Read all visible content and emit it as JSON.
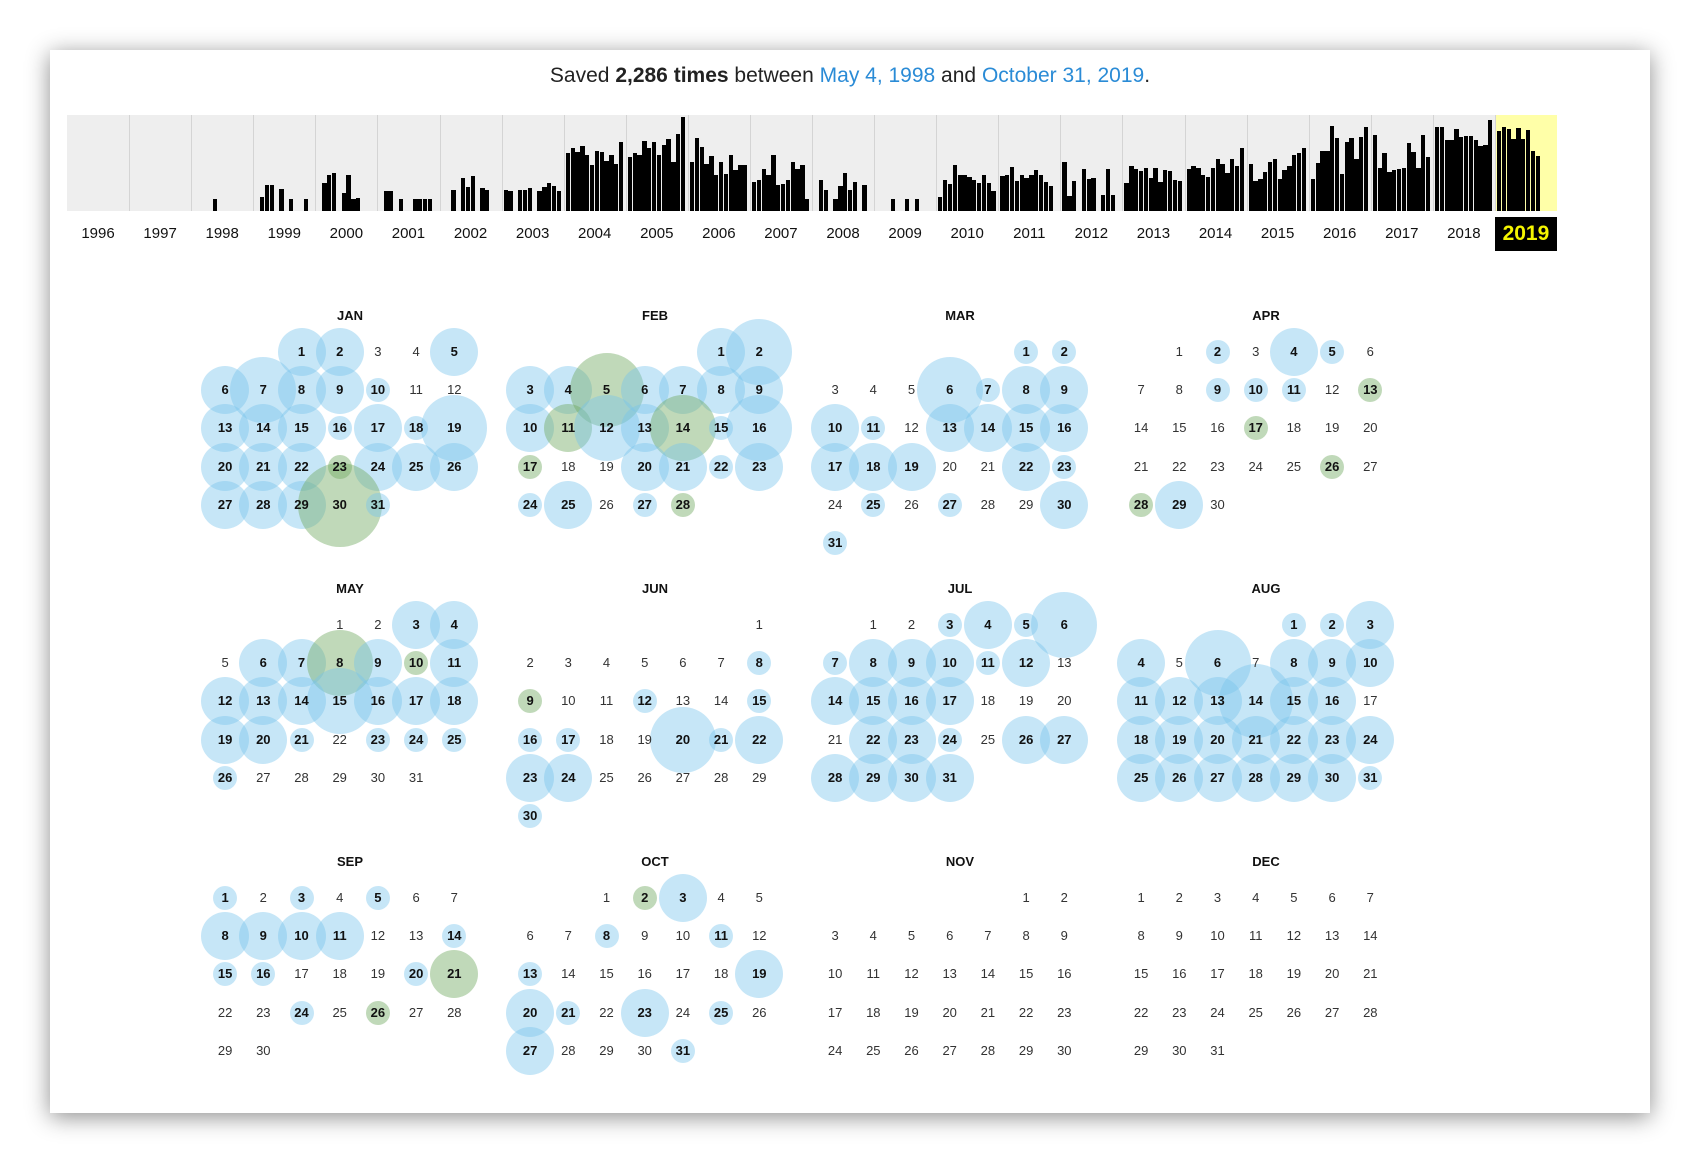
{
  "summary": {
    "prefix": "Saved ",
    "count": "2,286 times",
    "between": " between ",
    "first_date": "May 4, 1998",
    "and": " and ",
    "last_date": "October 31, 2019",
    "suffix": "."
  },
  "years": [
    "1996",
    "1997",
    "1998",
    "1999",
    "2000",
    "2001",
    "2002",
    "2003",
    "2004",
    "2005",
    "2006",
    "2007",
    "2008",
    "2009",
    "2010",
    "2011",
    "2012",
    "2013",
    "2014",
    "2015",
    "2016",
    "2017",
    "2018",
    "2019"
  ],
  "selected_year": "2019",
  "sparkline_levels": [
    [
      0,
      0,
      0,
      0,
      0,
      0,
      0,
      0,
      0,
      0,
      0,
      0
    ],
    [
      0,
      0,
      0,
      0,
      0,
      0,
      0,
      0,
      0,
      0,
      0,
      0
    ],
    [
      0,
      0,
      0,
      0,
      13,
      0,
      0,
      0,
      0,
      0,
      0,
      0
    ],
    [
      0,
      15,
      27,
      27,
      0,
      23,
      0,
      12,
      0,
      0,
      13,
      0
    ],
    [
      0,
      29,
      37,
      40,
      0,
      19,
      37,
      13,
      14,
      0,
      0,
      0
    ],
    [
      0,
      21,
      21,
      0,
      12,
      0,
      0,
      12,
      12,
      13,
      12,
      0
    ],
    [
      0,
      0,
      22,
      0,
      34,
      25,
      36,
      0,
      24,
      22,
      0,
      0
    ],
    [
      22,
      21,
      0,
      22,
      22,
      24,
      0,
      21,
      25,
      29,
      26,
      21
    ],
    [
      60,
      66,
      61,
      68,
      58,
      48,
      62,
      61,
      52,
      58,
      49,
      72
    ],
    [
      56,
      60,
      58,
      73,
      66,
      72,
      58,
      69,
      75,
      51,
      80,
      98
    ],
    [
      51,
      76,
      67,
      49,
      57,
      38,
      51,
      39,
      58,
      43,
      48,
      48
    ],
    [
      30,
      32,
      44,
      37,
      58,
      27,
      28,
      32,
      51,
      44,
      48,
      12
    ],
    [
      0,
      32,
      22,
      0,
      12,
      26,
      40,
      22,
      30,
      0,
      27,
      0
    ],
    [
      0,
      0,
      0,
      12,
      0,
      0,
      12,
      0,
      12,
      0,
      0,
      0
    ],
    [
      15,
      32,
      28,
      48,
      38,
      38,
      35,
      32,
      29,
      38,
      29,
      21
    ],
    [
      36,
      38,
      46,
      31,
      38,
      34,
      37,
      43,
      37,
      30,
      26,
      0
    ],
    [
      51,
      16,
      31,
      0,
      44,
      33,
      34,
      0,
      17,
      44,
      17,
      0
    ],
    [
      29,
      47,
      44,
      42,
      45,
      34,
      45,
      30,
      43,
      42,
      32,
      31
    ],
    [
      44,
      47,
      45,
      37,
      35,
      45,
      54,
      49,
      40,
      54,
      47,
      66
    ],
    [
      49,
      31,
      33,
      41,
      51,
      54,
      33,
      43,
      47,
      58,
      60,
      66
    ],
    [
      33,
      50,
      63,
      62,
      89,
      76,
      39,
      72,
      76,
      54,
      77,
      87
    ],
    [
      79,
      45,
      60,
      41,
      43,
      44,
      45,
      71,
      61,
      45,
      79,
      56
    ],
    [
      88,
      87,
      74,
      74,
      85,
      77,
      78,
      78,
      74,
      68,
      69,
      95
    ],
    [
      83,
      88,
      85,
      75,
      86,
      75,
      84,
      62,
      57,
      0,
      0,
      0
    ]
  ],
  "months": [
    {
      "name": "JAN",
      "start": 2,
      "days": 31,
      "b": [
        [
          "1",
          24
        ],
        [
          "2",
          24
        ],
        [
          "5",
          24
        ],
        [
          "6",
          24
        ],
        [
          "7",
          33
        ],
        [
          "8",
          24
        ],
        [
          "9",
          24
        ],
        [
          "10",
          12
        ],
        [
          "13",
          24
        ],
        [
          "14",
          24
        ],
        [
          "15",
          24
        ],
        [
          "16",
          12
        ],
        [
          "17",
          24
        ],
        [
          "18",
          12
        ],
        [
          "19",
          33
        ],
        [
          "20",
          24
        ],
        [
          "21",
          24
        ],
        [
          "22",
          24
        ],
        [
          "24",
          24
        ],
        [
          "25",
          24
        ],
        [
          "26",
          24
        ],
        [
          "27",
          24
        ],
        [
          "28",
          24
        ],
        [
          "29",
          24
        ],
        [
          "31",
          12
        ]
      ],
      "g": [
        [
          "23",
          12
        ],
        [
          "30",
          42
        ]
      ]
    },
    {
      "name": "FEB",
      "start": 5,
      "days": 28,
      "b": [
        [
          "1",
          24
        ],
        [
          "2",
          33
        ],
        [
          "3",
          24
        ],
        [
          "4",
          24
        ],
        [
          "6",
          24
        ],
        [
          "7",
          24
        ],
        [
          "8",
          24
        ],
        [
          "9",
          24
        ],
        [
          "10",
          24
        ],
        [
          "12",
          33
        ],
        [
          "13",
          24
        ],
        [
          "15",
          12
        ],
        [
          "16",
          33
        ],
        [
          "20",
          24
        ],
        [
          "21",
          24
        ],
        [
          "22",
          12
        ],
        [
          "23",
          24
        ],
        [
          "24",
          12
        ],
        [
          "25",
          24
        ],
        [
          "27",
          12
        ]
      ],
      "g": [
        [
          "5",
          37
        ],
        [
          "11",
          24
        ],
        [
          "14",
          33
        ],
        [
          "17",
          12
        ],
        [
          "28",
          12
        ]
      ]
    },
    {
      "name": "MAR",
      "start": 5,
      "days": 31,
      "b": [
        [
          "1",
          12
        ],
        [
          "2",
          12
        ],
        [
          "6",
          33
        ],
        [
          "7",
          12
        ],
        [
          "8",
          24
        ],
        [
          "9",
          24
        ],
        [
          "10",
          24
        ],
        [
          "11",
          12
        ],
        [
          "13",
          24
        ],
        [
          "14",
          24
        ],
        [
          "15",
          24
        ],
        [
          "16",
          24
        ],
        [
          "17",
          24
        ],
        [
          "18",
          24
        ],
        [
          "19",
          24
        ],
        [
          "22",
          24
        ],
        [
          "23",
          12
        ],
        [
          "25",
          12
        ],
        [
          "27",
          12
        ],
        [
          "30",
          24
        ],
        [
          "31",
          12
        ]
      ],
      "g": []
    },
    {
      "name": "APR",
      "start": 1,
      "days": 30,
      "b": [
        [
          "2",
          12
        ],
        [
          "4",
          24
        ],
        [
          "5",
          12
        ],
        [
          "9",
          12
        ],
        [
          "10",
          12
        ],
        [
          "11",
          12
        ],
        [
          "29",
          24
        ]
      ],
      "g": [
        [
          "13",
          12
        ],
        [
          "17",
          12
        ],
        [
          "26",
          12
        ],
        [
          "28",
          12
        ]
      ]
    },
    {
      "name": "MAY",
      "start": 3,
      "days": 31,
      "b": [
        [
          "3",
          24
        ],
        [
          "4",
          24
        ],
        [
          "6",
          24
        ],
        [
          "7",
          24
        ],
        [
          "9",
          24
        ],
        [
          "11",
          24
        ],
        [
          "12",
          24
        ],
        [
          "13",
          24
        ],
        [
          "14",
          24
        ],
        [
          "15",
          33
        ],
        [
          "16",
          24
        ],
        [
          "17",
          24
        ],
        [
          "18",
          24
        ],
        [
          "19",
          24
        ],
        [
          "20",
          24
        ],
        [
          "21",
          12
        ],
        [
          "23",
          12
        ],
        [
          "24",
          12
        ],
        [
          "25",
          12
        ],
        [
          "26",
          12
        ]
      ],
      "g": [
        [
          "8",
          33
        ],
        [
          "10",
          12
        ]
      ]
    },
    {
      "name": "JUN",
      "start": 6,
      "days": 30,
      "b": [
        [
          "8",
          12
        ],
        [
          "12",
          12
        ],
        [
          "15",
          12
        ],
        [
          "16",
          12
        ],
        [
          "17",
          12
        ],
        [
          "20",
          33
        ],
        [
          "21",
          12
        ],
        [
          "22",
          24
        ],
        [
          "23",
          24
        ],
        [
          "24",
          24
        ],
        [
          "30",
          12
        ]
      ],
      "g": [
        [
          "9",
          12
        ]
      ]
    },
    {
      "name": "JUL",
      "start": 1,
      "days": 31,
      "b": [
        [
          "3",
          12
        ],
        [
          "4",
          24
        ],
        [
          "5",
          12
        ],
        [
          "6",
          33
        ],
        [
          "7",
          12
        ],
        [
          "8",
          24
        ],
        [
          "9",
          24
        ],
        [
          "10",
          24
        ],
        [
          "11",
          12
        ],
        [
          "12",
          24
        ],
        [
          "14",
          24
        ],
        [
          "15",
          24
        ],
        [
          "16",
          24
        ],
        [
          "17",
          24
        ],
        [
          "22",
          24
        ],
        [
          "23",
          24
        ],
        [
          "24",
          12
        ],
        [
          "26",
          24
        ],
        [
          "27",
          24
        ],
        [
          "28",
          24
        ],
        [
          "29",
          24
        ],
        [
          "30",
          24
        ],
        [
          "31",
          24
        ]
      ],
      "g": []
    },
    {
      "name": "AUG",
      "start": 4,
      "days": 31,
      "b": [
        [
          "1",
          12
        ],
        [
          "2",
          12
        ],
        [
          "3",
          24
        ],
        [
          "4",
          24
        ],
        [
          "6",
          33
        ],
        [
          "8",
          24
        ],
        [
          "9",
          24
        ],
        [
          "10",
          24
        ],
        [
          "11",
          24
        ],
        [
          "12",
          24
        ],
        [
          "13",
          24
        ],
        [
          "14",
          37
        ],
        [
          "15",
          24
        ],
        [
          "16",
          24
        ],
        [
          "18",
          24
        ],
        [
          "19",
          24
        ],
        [
          "20",
          24
        ],
        [
          "21",
          24
        ],
        [
          "22",
          24
        ],
        [
          "23",
          24
        ],
        [
          "24",
          24
        ],
        [
          "25",
          24
        ],
        [
          "26",
          24
        ],
        [
          "27",
          24
        ],
        [
          "28",
          24
        ],
        [
          "29",
          24
        ],
        [
          "30",
          24
        ],
        [
          "31",
          12
        ]
      ],
      "g": []
    },
    {
      "name": "SEP",
      "start": 0,
      "days": 30,
      "b": [
        [
          "1",
          12
        ],
        [
          "3",
          12
        ],
        [
          "5",
          12
        ],
        [
          "8",
          24
        ],
        [
          "9",
          24
        ],
        [
          "10",
          24
        ],
        [
          "11",
          24
        ],
        [
          "14",
          12
        ],
        [
          "15",
          12
        ],
        [
          "16",
          12
        ],
        [
          "20",
          12
        ],
        [
          "24",
          12
        ]
      ],
      "g": [
        [
          "21",
          24
        ],
        [
          "26",
          12
        ]
      ]
    },
    {
      "name": "OCT",
      "start": 2,
      "days": 31,
      "b": [
        [
          "3",
          24
        ],
        [
          "8",
          12
        ],
        [
          "11",
          12
        ],
        [
          "13",
          12
        ],
        [
          "19",
          24
        ],
        [
          "20",
          24
        ],
        [
          "21",
          12
        ],
        [
          "23",
          24
        ],
        [
          "25",
          12
        ],
        [
          "27",
          24
        ],
        [
          "31",
          12
        ]
      ],
      "g": [
        [
          "2",
          12
        ]
      ]
    },
    {
      "name": "NOV",
      "start": 5,
      "days": 30,
      "b": [],
      "g": []
    },
    {
      "name": "DEC",
      "start": 0,
      "days": 31,
      "b": [],
      "g": []
    }
  ],
  "colors": {
    "accent": "#2a8bd6",
    "bubble_blue": "#78c3eb",
    "bubble_green": "#74aa64",
    "highlight": "#ffffa8",
    "selected_year_text": "#f5f500"
  }
}
